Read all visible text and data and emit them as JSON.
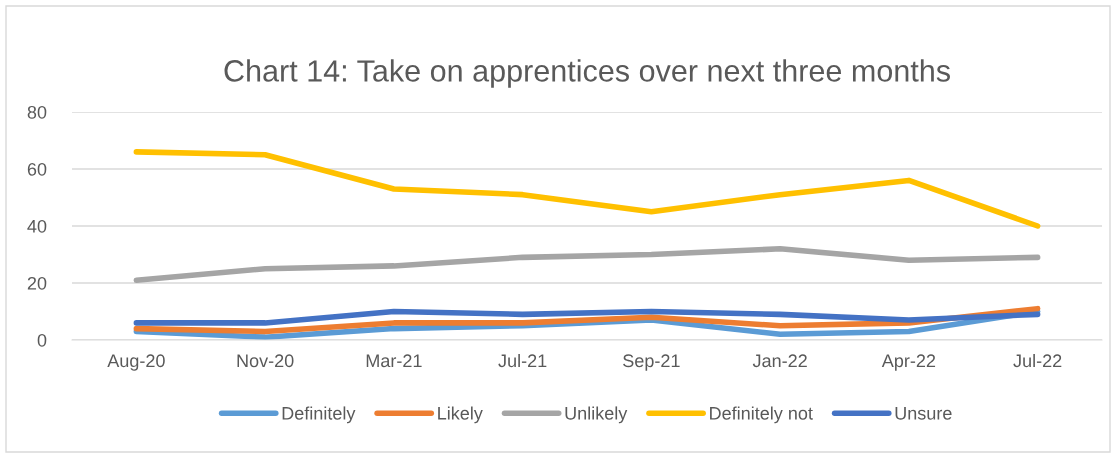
{
  "chart_data": {
    "type": "line",
    "title": "Chart 14: Take on apprentices over next three months",
    "categories": [
      "Aug-20",
      "Nov-20",
      "Mar-21",
      "Jul-21",
      "Sep-21",
      "Jan-22",
      "Apr-22",
      "Jul-22"
    ],
    "series": [
      {
        "name": "Definitely",
        "color": "#5b9bd5",
        "values": [
          3,
          1,
          4,
          5,
          7,
          2,
          3,
          10
        ]
      },
      {
        "name": "Likely",
        "color": "#ed7d31",
        "values": [
          4,
          3,
          6,
          6,
          8,
          5,
          6,
          11
        ]
      },
      {
        "name": "Unlikely",
        "color": "#a5a5a5",
        "values": [
          21,
          25,
          26,
          29,
          30,
          32,
          28,
          29
        ]
      },
      {
        "name": "Definitely not",
        "color": "#ffc000",
        "values": [
          66,
          65,
          53,
          51,
          45,
          51,
          56,
          40
        ]
      },
      {
        "name": "Unsure",
        "color": "#4472c4",
        "values": [
          6,
          6,
          10,
          9,
          10,
          9,
          7,
          9
        ]
      }
    ],
    "ylim": [
      0,
      80
    ],
    "yticks": [
      0,
      20,
      40,
      60,
      80
    ],
    "grid": "y",
    "legend": "bottom",
    "marker": "none",
    "line_style": "solid"
  }
}
